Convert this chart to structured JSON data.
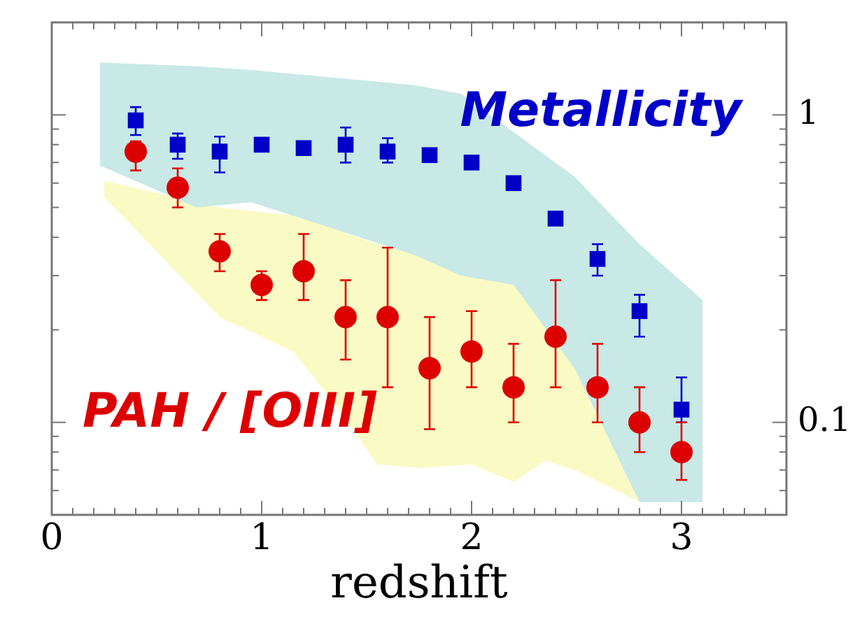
{
  "chart_data": {
    "type": "scatter",
    "xlabel": "redshift",
    "xlim": [
      0,
      3.5
    ],
    "xticks": [
      0,
      {
        "value": 0.1,
        "label": null
      },
      {
        "value": 0.2,
        "label": null
      },
      {
        "value": 0.3,
        "label": null
      },
      {
        "value": 0.4,
        "label": null
      },
      {
        "value": 0.5,
        "label": null
      },
      {
        "value": 0.6,
        "label": null
      },
      {
        "value": 0.7,
        "label": null
      },
      {
        "value": 0.8,
        "label": null
      },
      {
        "value": 0.9,
        "label": null
      },
      1,
      {
        "value": 1.1,
        "label": null
      },
      {
        "value": 1.2,
        "label": null
      },
      {
        "value": 1.3,
        "label": null
      },
      {
        "value": 1.4,
        "label": null
      },
      {
        "value": 1.5,
        "label": null
      },
      {
        "value": 1.6,
        "label": null
      },
      {
        "value": 1.7,
        "label": null
      },
      {
        "value": 1.8,
        "label": null
      },
      {
        "value": 1.9,
        "label": null
      },
      2,
      {
        "value": 2.1,
        "label": null
      },
      {
        "value": 2.2,
        "label": null
      },
      {
        "value": 2.3,
        "label": null
      },
      {
        "value": 2.4,
        "label": null
      },
      {
        "value": 2.5,
        "label": null
      },
      {
        "value": 2.6,
        "label": null
      },
      {
        "value": 2.7,
        "label": null
      },
      {
        "value": 2.8,
        "label": null
      },
      {
        "value": 2.9,
        "label": null
      },
      3,
      {
        "value": 3.1,
        "label": null
      },
      {
        "value": 3.2,
        "label": null
      },
      {
        "value": 3.3,
        "label": null
      },
      {
        "value": 3.4,
        "label": null
      },
      {
        "value": 3.5,
        "label": null
      }
    ],
    "log": "y",
    "ylim": [
      0.05,
      2
    ],
    "yticks": [
      {
        "value": 0.05,
        "label": null
      },
      {
        "value": 0.06,
        "label": null
      },
      {
        "value": 0.07,
        "label": null
      },
      {
        "value": 0.08,
        "label": null
      },
      {
        "value": 0.09,
        "label": null
      },
      0.1,
      {
        "value": 0.2,
        "label": null
      },
      {
        "value": 0.3,
        "label": null
      },
      {
        "value": 0.4,
        "label": null
      },
      {
        "value": 0.5,
        "label": null
      },
      {
        "value": 0.6,
        "label": null
      },
      {
        "value": 0.7,
        "label": null
      },
      {
        "value": 0.8,
        "label": null
      },
      {
        "value": 0.9,
        "label": null
      },
      1,
      {
        "value": 2,
        "label": null
      }
    ],
    "grid": false,
    "legend": false,
    "series": [
      {
        "type": "area",
        "color": "#c8e9e6",
        "x": [
          0.23,
          0.24,
          0.69,
          0.95,
          1.73,
          1.95,
          2.2,
          2.49,
          2.8,
          3.1
        ],
        "values": [
          null,
          null,
          null,
          null,
          null,
          null,
          null,
          null,
          null,
          null
        ],
        "upper": [
          1.48,
          1.48,
          1.44,
          1.4,
          1.25,
          1.17,
          0.88,
          0.63,
          0.38,
          0.25
        ],
        "lower": [
          0.68,
          0.68,
          0.5,
          0.52,
          0.35,
          0.3,
          0.28,
          0.15,
          0.055,
          0.055
        ]
      },
      {
        "type": "area",
        "color": "#fafac4",
        "x": [
          0.25,
          0.8,
          1.15,
          1.37,
          1.55,
          1.75,
          2.0,
          2.2,
          2.35,
          2.49,
          2.8
        ],
        "values": [
          null,
          null,
          null,
          null,
          null,
          null,
          null,
          null,
          null,
          null,
          null
        ],
        "upper": [
          0.61,
          0.5,
          0.47,
          0.42,
          0.38,
          0.35,
          0.3,
          0.28,
          0.21,
          0.15,
          0.055
        ],
        "lower": [
          0.54,
          0.22,
          0.17,
          0.11,
          0.073,
          0.071,
          0.073,
          0.064,
          0.075,
          0.07,
          0.055
        ]
      },
      {
        "name": "Metallicity",
        "color": "#0000c8",
        "marker": "square",
        "x": [
          0.4,
          0.6,
          0.8,
          1.0,
          1.2,
          1.4,
          1.6,
          1.8,
          2.0,
          2.2,
          2.4,
          2.6,
          2.8,
          3.0
        ],
        "values": [
          0.96,
          0.8,
          0.76,
          0.8,
          0.78,
          0.8,
          0.76,
          0.74,
          0.7,
          0.6,
          0.46,
          0.34,
          0.23,
          0.11
        ],
        "errors": [
          [
            0.86,
            1.06
          ],
          [
            0.72,
            0.87
          ],
          [
            0.65,
            0.85
          ],
          null,
          null,
          [
            0.7,
            0.91
          ],
          [
            0.7,
            0.84
          ],
          null,
          null,
          null,
          null,
          [
            0.3,
            0.38
          ],
          [
            0.19,
            0.26
          ],
          [
            0.1,
            0.14
          ]
        ]
      },
      {
        "name": "PAH / [OIII]",
        "color": "#dd0000",
        "marker": "circle",
        "x": [
          0.4,
          0.6,
          0.8,
          1.0,
          1.2,
          1.4,
          1.6,
          1.8,
          2.0,
          2.2,
          2.4,
          2.6,
          2.8,
          3.0
        ],
        "values": [
          0.76,
          0.58,
          0.36,
          0.28,
          0.31,
          0.22,
          0.22,
          0.15,
          0.17,
          0.13,
          0.19,
          0.13,
          0.1,
          0.08
        ],
        "errors": [
          [
            0.66,
            0.82
          ],
          [
            0.5,
            0.67
          ],
          [
            0.31,
            0.41
          ],
          [
            0.25,
            0.31
          ],
          [
            0.25,
            0.41
          ],
          [
            0.16,
            0.29
          ],
          [
            0.13,
            0.37
          ],
          [
            0.095,
            0.22
          ],
          [
            0.13,
            0.23
          ],
          [
            0.1,
            0.18
          ],
          [
            0.13,
            0.29
          ],
          [
            0.1,
            0.18
          ],
          [
            0.08,
            0.13
          ],
          [
            0.065,
            0.1
          ]
        ]
      }
    ]
  }
}
